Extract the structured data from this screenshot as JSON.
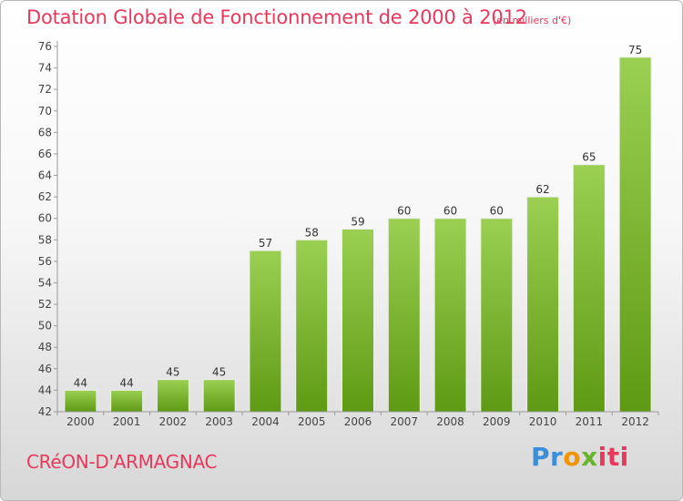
{
  "title": "Dotation Globale de Fonctionnement de 2000 à 2012",
  "unit": "(en milliers d'€)",
  "commune": "CRéON-D'ARMAGNAC",
  "logo": {
    "text": "Proxiti",
    "parts": [
      "Pr",
      "o",
      "x",
      "iti"
    ]
  },
  "colors": {
    "title": "#e8385c",
    "bar_light": "#9bd052",
    "bar_dark": "#5e9a14",
    "bar_edge": "#eeeeee"
  },
  "chart_data": {
    "type": "bar",
    "categories": [
      "2000",
      "2001",
      "2002",
      "2003",
      "2004",
      "2005",
      "2006",
      "2007",
      "2008",
      "2009",
      "2010",
      "2011",
      "2012"
    ],
    "values": [
      44,
      44,
      45,
      45,
      57,
      58,
      59,
      60,
      60,
      60,
      62,
      65,
      75
    ],
    "title": "Dotation Globale de Fonctionnement de 2000 à 2012",
    "xlabel": "",
    "ylabel": "",
    "ylim": [
      42,
      76
    ],
    "yticks": [
      42,
      44,
      46,
      48,
      50,
      52,
      54,
      56,
      58,
      60,
      62,
      64,
      66,
      68,
      70,
      72,
      74,
      76
    ],
    "grid": false,
    "legend": "none"
  }
}
